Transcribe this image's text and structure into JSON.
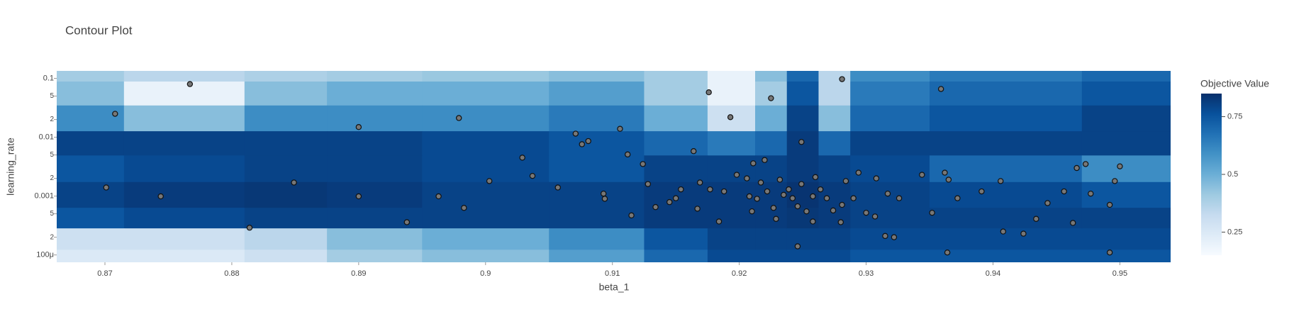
{
  "chart_data": {
    "type": "contour",
    "title": "Contour Plot",
    "x_label": "beta_1",
    "y_label": "learning_rate",
    "colorbar_title": "Objective Value",
    "y_log": true,
    "xlim": [
      0.8662,
      0.954
    ],
    "ylim": [
      7.5e-05,
      0.134
    ],
    "xticks": [
      0.87,
      0.88,
      0.89,
      0.9,
      0.91,
      0.92,
      0.93,
      0.94,
      0.95
    ],
    "yticks": [
      0.1,
      {
        "value": 0.05,
        "label": "5"
      },
      {
        "value": 0.02,
        "label": "2"
      },
      0.01,
      {
        "value": 0.005,
        "label": "5"
      },
      {
        "value": 0.002,
        "label": "2"
      },
      0.001,
      {
        "value": 0.0005,
        "label": "5"
      },
      {
        "value": 0.0002,
        "label": "2"
      },
      {
        "value": 0.0001,
        "label": "100μ"
      }
    ],
    "clim": [
      0.15,
      0.85
    ],
    "cticks": [
      0.25,
      0.5,
      0.75
    ],
    "colorscale": [
      "#f7fbff",
      "#deebf7",
      "#c6dbef",
      "#9ecae1",
      "#6baed6",
      "#4292c6",
      "#2171b5",
      "#08519c",
      "#08306b"
    ],
    "point_color": "#777777",
    "x_grid": [
      0.866,
      0.877,
      0.885,
      0.89,
      0.9,
      0.91,
      0.915,
      0.92,
      0.9225,
      0.925,
      0.9275,
      0.93,
      0.94,
      0.954
    ],
    "y_grid": [
      0.13,
      0.06,
      0.02,
      0.008,
      0.003,
      0.001,
      0.0004,
      0.0002,
      7.5e-05
    ],
    "z": [
      [
        0.4,
        0.35,
        0.38,
        0.4,
        0.42,
        0.45,
        0.4,
        0.2,
        0.45,
        0.7,
        0.35,
        0.6,
        0.65,
        0.7
      ],
      [
        0.45,
        0.2,
        0.45,
        0.5,
        0.5,
        0.55,
        0.4,
        0.2,
        0.4,
        0.75,
        0.35,
        0.65,
        0.7,
        0.75
      ],
      [
        0.6,
        0.45,
        0.6,
        0.6,
        0.6,
        0.65,
        0.5,
        0.3,
        0.5,
        0.8,
        0.45,
        0.7,
        0.75,
        0.8
      ],
      [
        0.8,
        0.8,
        0.8,
        0.8,
        0.78,
        0.75,
        0.7,
        0.65,
        0.7,
        0.82,
        0.7,
        0.8,
        0.8,
        0.8
      ],
      [
        0.75,
        0.78,
        0.8,
        0.8,
        0.78,
        0.75,
        0.8,
        0.8,
        0.8,
        0.82,
        0.8,
        0.78,
        0.7,
        0.6
      ],
      [
        0.8,
        0.82,
        0.83,
        0.82,
        0.8,
        0.8,
        0.82,
        0.82,
        0.82,
        0.84,
        0.82,
        0.8,
        0.78,
        0.75
      ],
      [
        0.75,
        0.78,
        0.8,
        0.8,
        0.8,
        0.8,
        0.82,
        0.82,
        0.82,
        0.83,
        0.82,
        0.8,
        0.8,
        0.8
      ],
      [
        0.3,
        0.3,
        0.35,
        0.45,
        0.5,
        0.6,
        0.75,
        0.8,
        0.8,
        0.8,
        0.8,
        0.78,
        0.78,
        0.78
      ],
      [
        0.25,
        0.25,
        0.3,
        0.4,
        0.45,
        0.55,
        0.7,
        0.78,
        0.78,
        0.78,
        0.78,
        0.75,
        0.75,
        0.75
      ]
    ],
    "points_x": [
      0.8767,
      0.8708,
      0.89,
      0.8979,
      0.9106,
      0.9176,
      0.9193,
      0.9225,
      0.9281,
      0.9359,
      0.9249,
      0.9029,
      0.9071,
      0.9076,
      0.9081,
      0.9112,
      0.9124,
      0.9164,
      0.9211,
      0.922,
      0.9037,
      0.9003,
      0.8849,
      0.8701,
      0.8744,
      0.89,
      0.8963,
      0.8983,
      0.8938,
      0.8814,
      0.9057,
      0.9093,
      0.9094,
      0.9115,
      0.9128,
      0.9134,
      0.9145,
      0.915,
      0.9154,
      0.9167,
      0.9169,
      0.9177,
      0.9184,
      0.9188,
      0.9198,
      0.9206,
      0.9208,
      0.921,
      0.9214,
      0.9217,
      0.9222,
      0.9227,
      0.9232,
      0.9235,
      0.9239,
      0.9242,
      0.9246,
      0.9249,
      0.9253,
      0.9258,
      0.926,
      0.9264,
      0.9269,
      0.9274,
      0.9281,
      0.9284,
      0.929,
      0.9294,
      0.93,
      0.9308,
      0.9317,
      0.9326,
      0.9344,
      0.9362,
      0.9365,
      0.9372,
      0.9391,
      0.9406,
      0.9424,
      0.9443,
      0.9456,
      0.9463,
      0.9466,
      0.9473,
      0.9477,
      0.9496,
      0.95,
      0.9492,
      0.9246,
      0.9364,
      0.9492,
      0.9408,
      0.9315,
      0.9322,
      0.9352,
      0.9307,
      0.928,
      0.9258,
      0.9229,
      0.9434
    ],
    "points_y": [
      0.08,
      0.025,
      0.0149,
      0.0212,
      0.0139,
      0.058,
      0.0219,
      0.046,
      0.097,
      0.066,
      0.0083,
      0.0045,
      0.0115,
      0.0076,
      0.0086,
      0.0051,
      0.0035,
      0.0058,
      0.0036,
      0.0041,
      0.0022,
      0.0018,
      0.0017,
      0.0014,
      0.00099,
      0.00099,
      0.00099,
      0.00063,
      0.00036,
      0.00029,
      0.0014,
      0.0011,
      0.0009,
      0.00047,
      0.0016,
      0.00065,
      0.00079,
      0.00092,
      0.0013,
      0.00061,
      0.0017,
      0.0013,
      0.00037,
      0.0012,
      0.0023,
      0.002,
      0.00099,
      0.00055,
      0.0009,
      0.0017,
      0.0012,
      0.00063,
      0.0019,
      0.00105,
      0.0013,
      0.00092,
      0.00067,
      0.0016,
      0.00055,
      0.00099,
      0.0021,
      0.0013,
      0.00092,
      0.00057,
      0.00071,
      0.0018,
      0.00092,
      0.0025,
      0.00052,
      0.002,
      0.0011,
      0.00092,
      0.0023,
      0.0025,
      0.0019,
      0.00092,
      0.0012,
      0.0018,
      0.00023,
      0.00076,
      0.0012,
      0.00035,
      0.003,
      0.0035,
      0.0011,
      0.0018,
      0.0032,
      0.00071,
      0.00014,
      0.00011,
      0.00011,
      0.00025,
      0.00021,
      0.0002,
      0.00052,
      0.00045,
      0.00036,
      0.00037,
      0.00041,
      0.00041
    ]
  }
}
